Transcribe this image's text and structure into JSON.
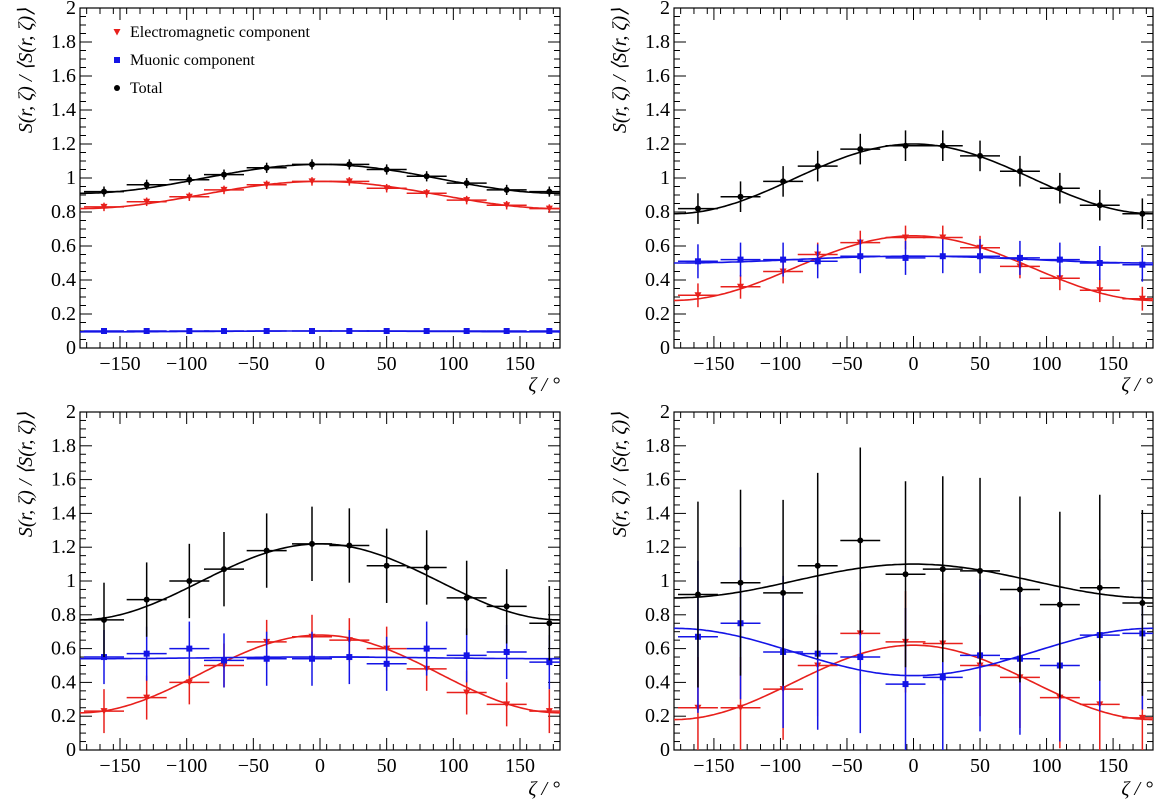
{
  "chart_data": [
    {
      "type": "scatter",
      "xlabel": "ζ / °",
      "ylabel": "S(r, ζ) / ⟨S(r, ζ)⟩",
      "xlim": [
        -180,
        180
      ],
      "ylim": [
        0,
        2
      ],
      "xticks": [
        "−150",
        "−100",
        "−50",
        "0",
        "50",
        "100",
        "150"
      ],
      "yticks": [
        "0",
        "0.2",
        "0.4",
        "0.6",
        "0.8",
        "1",
        "1.2",
        "1.4",
        "1.6",
        "1.8",
        "2"
      ],
      "grid": false,
      "legend": {
        "position": "top-left",
        "entries": [
          "Electromagnetic component",
          "Muonic component",
          "Total"
        ]
      },
      "series": [
        {
          "name": "Electromagnetic component",
          "color": "#e8201c",
          "marker": "triangle-down",
          "x": [
            -162,
            -130,
            -98,
            -72,
            -40,
            -6,
            22,
            50,
            80,
            110,
            140,
            172
          ],
          "y": [
            0.83,
            0.86,
            0.89,
            0.93,
            0.96,
            0.98,
            0.98,
            0.94,
            0.91,
            0.87,
            0.84,
            0.82
          ],
          "yerr": [
            0.025,
            0.025,
            0.025,
            0.025,
            0.025,
            0.025,
            0.025,
            0.025,
            0.025,
            0.025,
            0.025,
            0.025
          ],
          "fit": [
            0.82,
            0.98
          ]
        },
        {
          "name": "Muonic component",
          "color": "#1414e6",
          "marker": "square",
          "x": [
            -162,
            -130,
            -98,
            -72,
            -40,
            -6,
            22,
            50,
            80,
            110,
            140,
            172
          ],
          "y": [
            0.1,
            0.1,
            0.1,
            0.1,
            0.1,
            0.1,
            0.1,
            0.1,
            0.1,
            0.1,
            0.1,
            0.1
          ],
          "yerr": [
            0.008,
            0.008,
            0.008,
            0.008,
            0.008,
            0.008,
            0.008,
            0.008,
            0.008,
            0.008,
            0.008,
            0.008
          ],
          "fit": [
            0.095,
            0.1
          ]
        },
        {
          "name": "Total",
          "color": "#000000",
          "marker": "circle",
          "x": [
            -162,
            -130,
            -98,
            -72,
            -40,
            -6,
            22,
            50,
            80,
            110,
            140,
            172
          ],
          "y": [
            0.92,
            0.96,
            0.99,
            1.02,
            1.06,
            1.08,
            1.08,
            1.05,
            1.01,
            0.97,
            0.93,
            0.92
          ],
          "yerr": [
            0.03,
            0.03,
            0.03,
            0.03,
            0.03,
            0.03,
            0.03,
            0.03,
            0.03,
            0.03,
            0.03,
            0.03
          ],
          "fit": [
            0.91,
            1.08
          ]
        }
      ]
    },
    {
      "type": "scatter",
      "xlabel": "ζ / °",
      "ylabel": "S(r, ζ) / ⟨S(r, ζ)⟩",
      "xlim": [
        -180,
        180
      ],
      "ylim": [
        0,
        2
      ],
      "xticks": [
        "−150",
        "−100",
        "−50",
        "0",
        "50",
        "100",
        "150"
      ],
      "yticks": [
        "0",
        "0.2",
        "0.4",
        "0.6",
        "0.8",
        "1",
        "1.2",
        "1.4",
        "1.6",
        "1.8",
        "2"
      ],
      "grid": false,
      "series": [
        {
          "name": "Electromagnetic component",
          "color": "#e8201c",
          "marker": "triangle-down",
          "x": [
            -162,
            -130,
            -98,
            -72,
            -40,
            -6,
            22,
            50,
            80,
            110,
            140,
            172
          ],
          "y": [
            0.31,
            0.36,
            0.45,
            0.55,
            0.62,
            0.65,
            0.65,
            0.59,
            0.48,
            0.41,
            0.34,
            0.29
          ],
          "yerr": [
            0.07,
            0.07,
            0.07,
            0.07,
            0.07,
            0.07,
            0.07,
            0.07,
            0.07,
            0.07,
            0.07,
            0.07
          ],
          "fit": [
            0.28,
            0.66
          ]
        },
        {
          "name": "Muonic component",
          "color": "#1414e6",
          "marker": "square",
          "x": [
            -162,
            -130,
            -98,
            -72,
            -40,
            -6,
            22,
            50,
            80,
            110,
            140,
            172
          ],
          "y": [
            0.51,
            0.52,
            0.52,
            0.51,
            0.54,
            0.53,
            0.54,
            0.54,
            0.53,
            0.52,
            0.5,
            0.49
          ],
          "yerr": [
            0.1,
            0.1,
            0.1,
            0.1,
            0.1,
            0.1,
            0.1,
            0.1,
            0.1,
            0.1,
            0.1,
            0.1
          ],
          "fit": [
            0.5,
            0.54
          ]
        },
        {
          "name": "Total",
          "color": "#000000",
          "marker": "circle",
          "x": [
            -162,
            -130,
            -98,
            -72,
            -40,
            -6,
            22,
            50,
            80,
            110,
            140,
            172
          ],
          "y": [
            0.82,
            0.89,
            0.98,
            1.07,
            1.17,
            1.19,
            1.19,
            1.13,
            1.04,
            0.94,
            0.84,
            0.79
          ],
          "yerr": [
            0.09,
            0.09,
            0.09,
            0.09,
            0.09,
            0.09,
            0.09,
            0.09,
            0.09,
            0.09,
            0.09,
            0.09
          ],
          "fit": [
            0.79,
            1.2
          ]
        }
      ]
    },
    {
      "type": "scatter",
      "xlabel": "ζ / °",
      "ylabel": "S(r, ζ) / ⟨S(r, ζ)⟩",
      "xlim": [
        -180,
        180
      ],
      "ylim": [
        0,
        2
      ],
      "xticks": [
        "−150",
        "−100",
        "−50",
        "0",
        "50",
        "100",
        "150"
      ],
      "yticks": [
        "0",
        "0.2",
        "0.4",
        "0.6",
        "0.8",
        "1",
        "1.2",
        "1.4",
        "1.6",
        "1.8",
        "2"
      ],
      "grid": false,
      "series": [
        {
          "name": "Electromagnetic component",
          "color": "#e8201c",
          "marker": "triangle-down",
          "x": [
            -162,
            -130,
            -98,
            -72,
            -40,
            -6,
            22,
            50,
            80,
            110,
            140,
            172
          ],
          "y": [
            0.23,
            0.31,
            0.4,
            0.5,
            0.64,
            0.67,
            0.65,
            0.6,
            0.48,
            0.34,
            0.27,
            0.23
          ],
          "yerr": [
            0.13,
            0.13,
            0.13,
            0.13,
            0.13,
            0.13,
            0.13,
            0.13,
            0.13,
            0.13,
            0.13,
            0.13
          ],
          "fit": [
            0.22,
            0.68
          ]
        },
        {
          "name": "Muonic component",
          "color": "#1414e6",
          "marker": "square",
          "x": [
            -162,
            -130,
            -98,
            -72,
            -40,
            -6,
            22,
            50,
            80,
            110,
            140,
            172
          ],
          "y": [
            0.55,
            0.57,
            0.6,
            0.53,
            0.54,
            0.54,
            0.55,
            0.51,
            0.6,
            0.56,
            0.58,
            0.52
          ],
          "yerr": [
            0.16,
            0.16,
            0.16,
            0.16,
            0.16,
            0.16,
            0.16,
            0.16,
            0.16,
            0.16,
            0.16,
            0.16
          ],
          "fit": [
            0.54,
            0.55
          ]
        },
        {
          "name": "Total",
          "color": "#000000",
          "marker": "circle",
          "x": [
            -162,
            -130,
            -98,
            -72,
            -40,
            -6,
            22,
            50,
            80,
            110,
            140,
            172
          ],
          "y": [
            0.77,
            0.89,
            1.0,
            1.07,
            1.18,
            1.22,
            1.21,
            1.09,
            1.08,
            0.9,
            0.85,
            0.75
          ],
          "yerr": [
            0.22,
            0.22,
            0.22,
            0.22,
            0.22,
            0.22,
            0.22,
            0.22,
            0.22,
            0.22,
            0.22,
            0.22
          ],
          "fit": [
            0.77,
            1.22
          ]
        }
      ]
    },
    {
      "type": "scatter",
      "xlabel": "ζ / °",
      "ylabel": "S(r, ζ) / ⟨S(r, ζ)⟩",
      "xlim": [
        -180,
        180
      ],
      "ylim": [
        0,
        2
      ],
      "xticks": [
        "−150",
        "−100",
        "−50",
        "0",
        "50",
        "100",
        "150"
      ],
      "yticks": [
        "0",
        "0.2",
        "0.4",
        "0.6",
        "0.8",
        "1",
        "1.2",
        "1.4",
        "1.6",
        "1.8",
        "2"
      ],
      "grid": false,
      "series": [
        {
          "name": "Electromagnetic component",
          "color": "#e8201c",
          "marker": "triangle-down",
          "x": [
            -162,
            -130,
            -98,
            -72,
            -40,
            -6,
            22,
            50,
            80,
            110,
            140,
            172
          ],
          "y": [
            0.25,
            0.25,
            0.36,
            0.5,
            0.69,
            0.64,
            0.63,
            0.5,
            0.43,
            0.31,
            0.27,
            0.19
          ],
          "yerr": [
            0.3,
            0.3,
            0.3,
            0.3,
            0.3,
            0.3,
            0.3,
            0.3,
            0.3,
            0.3,
            0.3,
            0.3
          ],
          "fit": [
            0.18,
            0.62
          ]
        },
        {
          "name": "Muonic component",
          "color": "#1414e6",
          "marker": "square",
          "x": [
            -162,
            -130,
            -98,
            -72,
            -40,
            -6,
            22,
            50,
            80,
            110,
            140,
            172
          ],
          "y": [
            0.67,
            0.75,
            0.58,
            0.57,
            0.55,
            0.39,
            0.43,
            0.56,
            0.54,
            0.5,
            0.68,
            0.69
          ],
          "yerr": [
            0.45,
            0.45,
            0.45,
            0.45,
            0.45,
            0.45,
            0.45,
            0.45,
            0.45,
            0.45,
            0.45,
            0.45
          ],
          "fit": [
            0.72,
            0.44
          ]
        },
        {
          "name": "Total",
          "color": "#000000",
          "marker": "circle",
          "x": [
            -162,
            -130,
            -98,
            -72,
            -40,
            -6,
            22,
            50,
            80,
            110,
            140,
            172
          ],
          "y": [
            0.92,
            0.99,
            0.93,
            1.09,
            1.24,
            1.04,
            1.07,
            1.06,
            0.95,
            0.86,
            0.96,
            0.87
          ],
          "yerr": [
            0.55,
            0.55,
            0.55,
            0.55,
            0.55,
            0.55,
            0.55,
            0.55,
            0.55,
            0.55,
            0.55,
            0.55
          ],
          "fit": [
            0.9,
            1.1
          ]
        }
      ]
    }
  ]
}
